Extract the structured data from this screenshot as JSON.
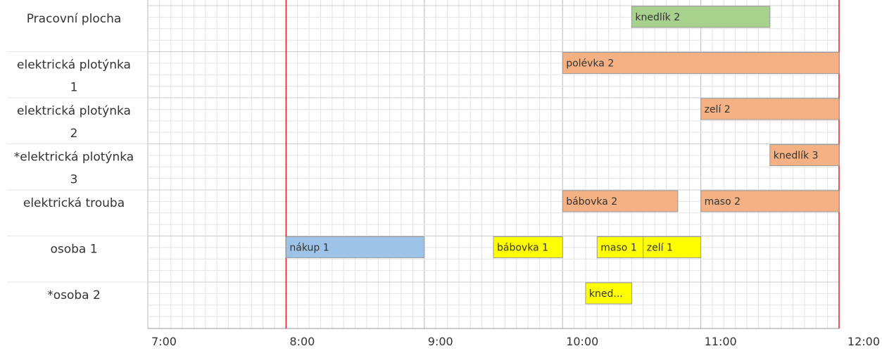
{
  "chart_data": {
    "type": "gantt",
    "x_range": [
      "7:00",
      "12:00"
    ],
    "x_ticks": [
      "7:00",
      "8:00",
      "9:00",
      "10:00",
      "11:00",
      "12:00"
    ],
    "markers": [
      "8:00",
      "12:00"
    ],
    "rows": [
      {
        "label": [
          "Pracovní plocha"
        ]
      },
      {
        "label": [
          "elektrická plotýnka",
          "1"
        ]
      },
      {
        "label": [
          "elektrická plotýnka",
          "2"
        ]
      },
      {
        "label": [
          "*elektrická plotýnka",
          "3"
        ]
      },
      {
        "label": [
          "elektrická trouba"
        ]
      },
      {
        "label": [
          "osoba 1"
        ]
      },
      {
        "label": [
          "*osoba 2"
        ]
      }
    ],
    "tasks": [
      {
        "label": "knedlík 2",
        "row": 0,
        "start": "10:30",
        "end": "11:30",
        "color": "#a9d18e"
      },
      {
        "label": "polévka 2",
        "row": 1,
        "start": "10:00",
        "end": "12:00",
        "color": "#f4b183"
      },
      {
        "label": "zelí 2",
        "row": 2,
        "start": "11:00",
        "end": "12:00",
        "color": "#f4b183"
      },
      {
        "label": "knedlík 3",
        "row": 3,
        "start": "11:30",
        "end": "12:00",
        "color": "#f4b183"
      },
      {
        "label": "bábovka 2",
        "row": 4,
        "start": "10:00",
        "end": "10:50",
        "color": "#f4b183"
      },
      {
        "label": "maso 2",
        "row": 4,
        "start": "11:00",
        "end": "12:00",
        "color": "#f4b183"
      },
      {
        "label": "nákup 1",
        "row": 5,
        "start": "8:00",
        "end": "9:00",
        "color": "#9dc3e6"
      },
      {
        "label": "bábovka 1",
        "row": 5,
        "start": "9:30",
        "end": "10:00",
        "color": "#ffff00"
      },
      {
        "label": "maso 1",
        "row": 5,
        "start": "10:15",
        "end": "10:35",
        "color": "#ffff00"
      },
      {
        "label": "zelí 1",
        "row": 5,
        "start": "10:35",
        "end": "11:00",
        "color": "#ffff00"
      },
      {
        "label": "kned...",
        "row": 6,
        "start": "10:10",
        "end": "10:30",
        "color": "#ffff00"
      }
    ]
  }
}
